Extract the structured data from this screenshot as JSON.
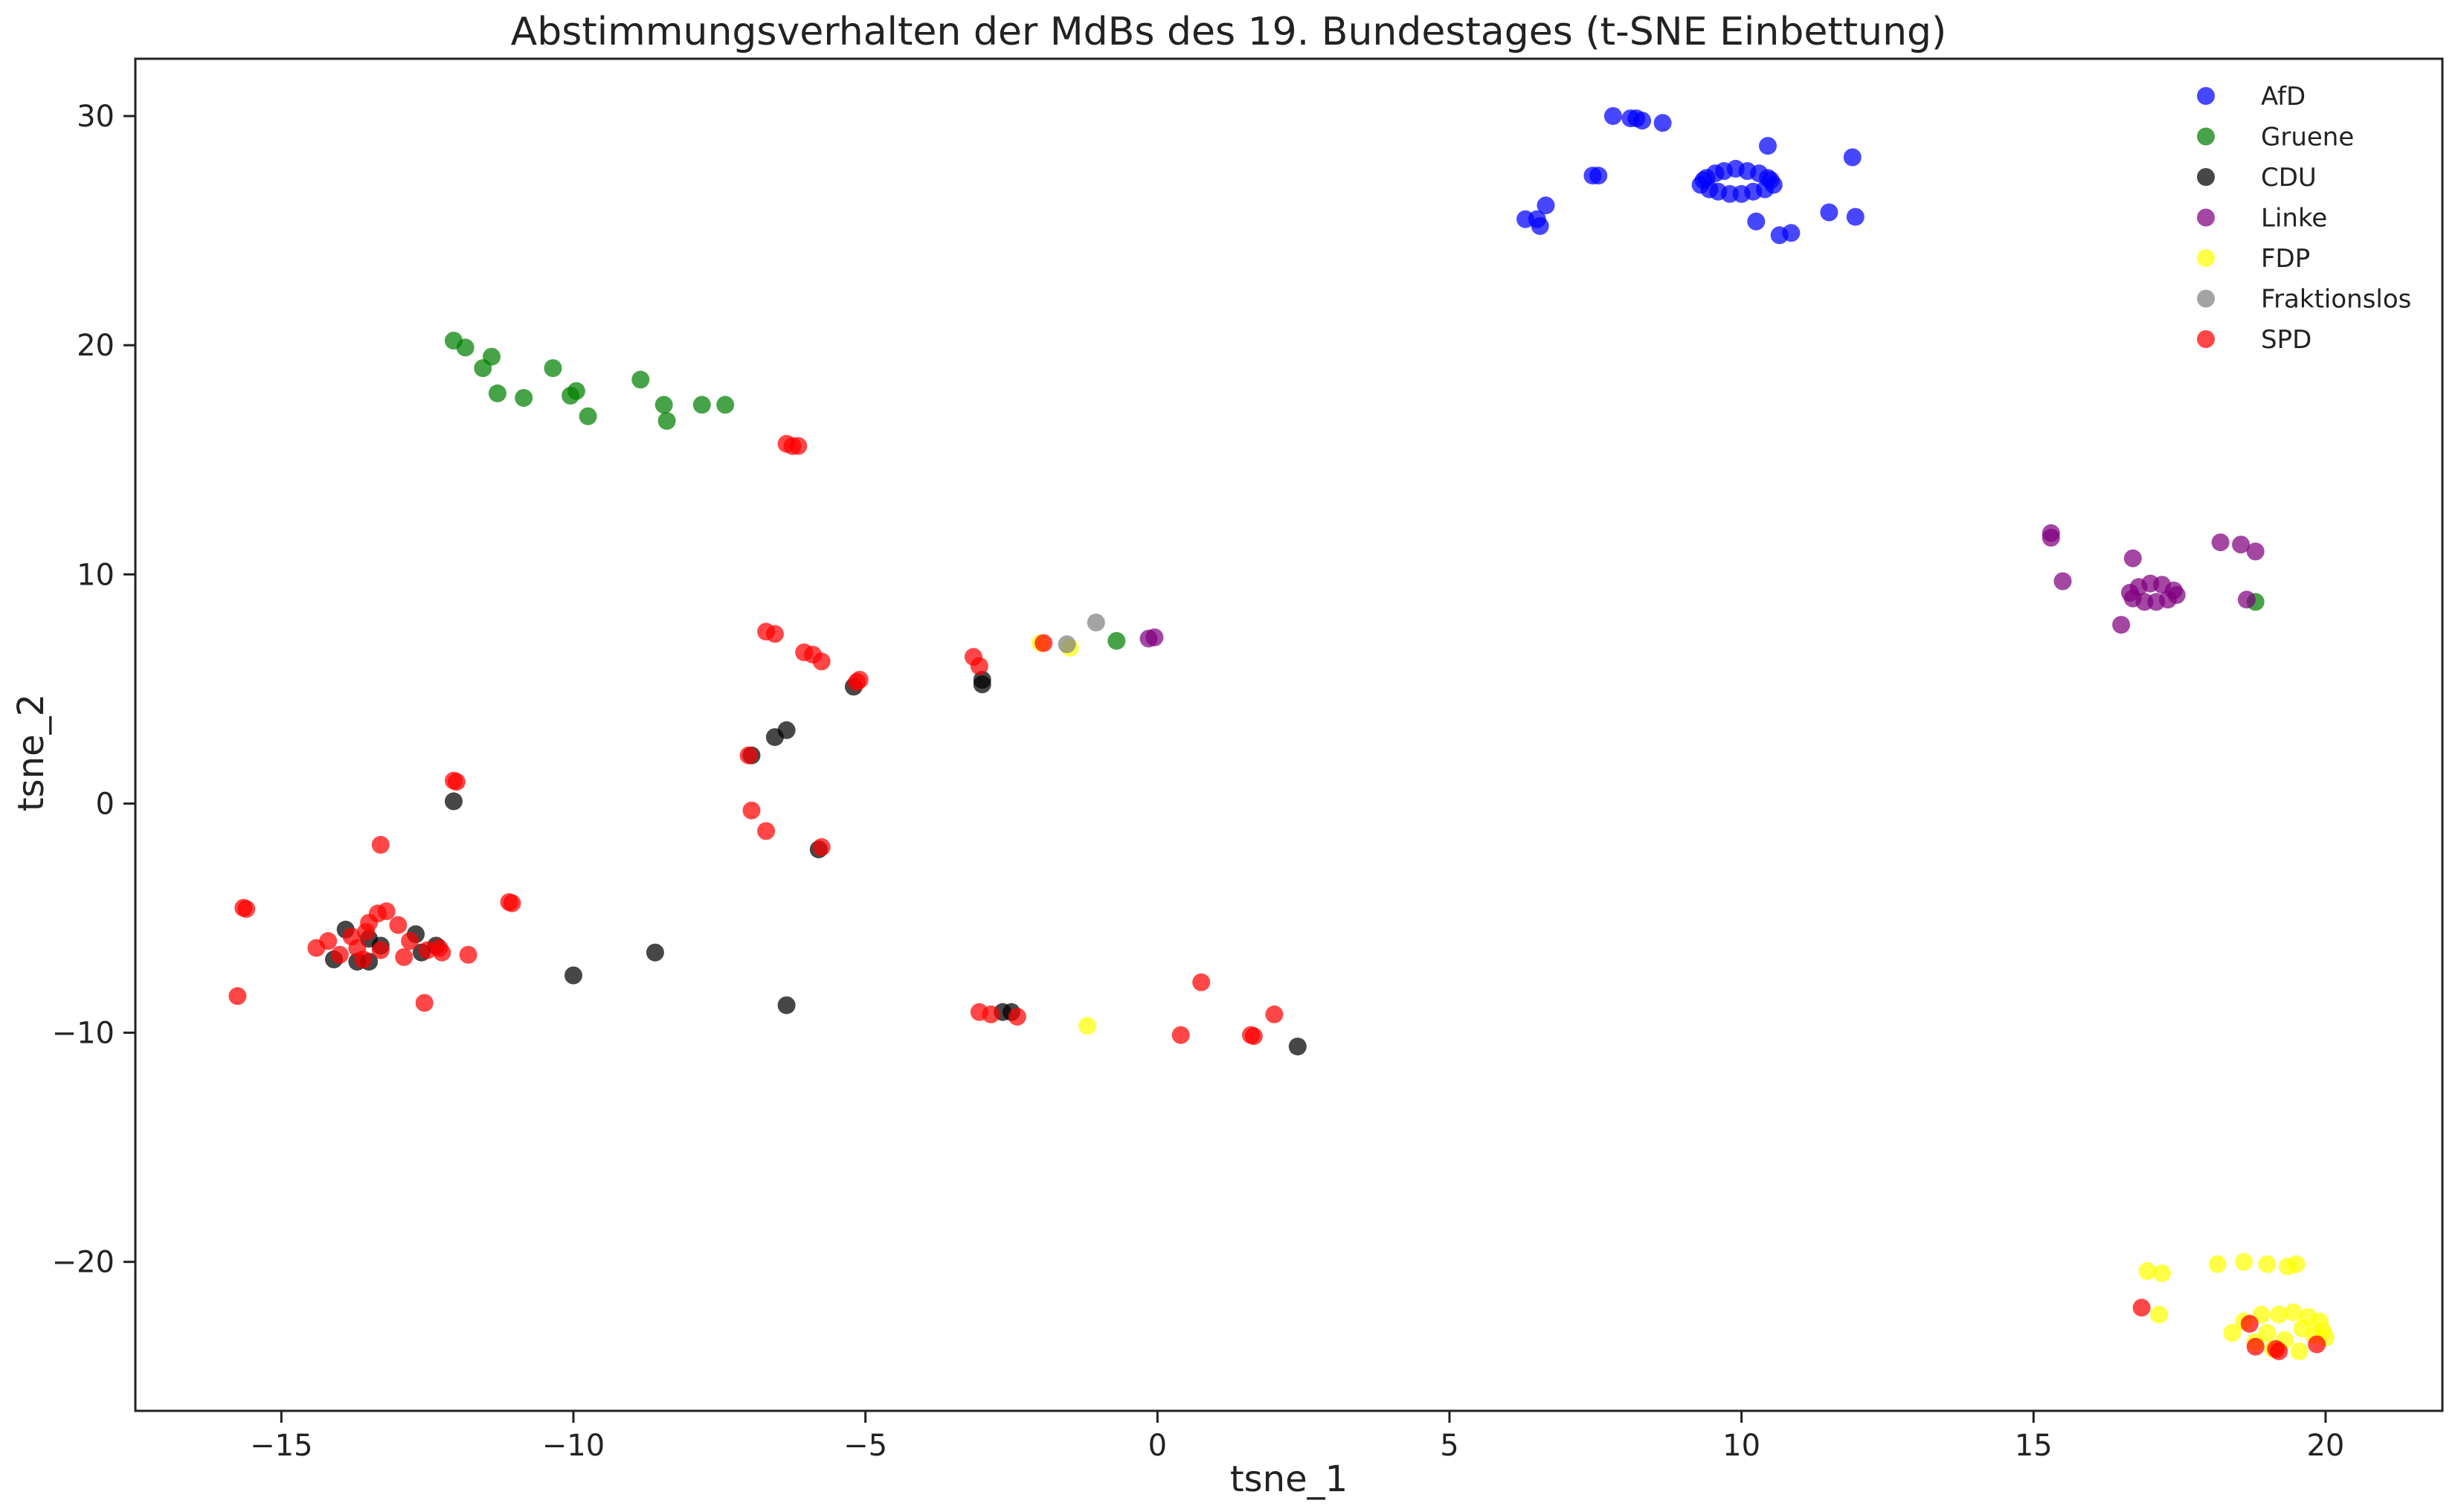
{
  "chart_data": {
    "type": "scatter",
    "title": "Abstimmungsverhalten der MdBs des 19. Bundestages (t-SNE Einbettung)",
    "xlabel": "tsne_1",
    "ylabel": "tsne_2",
    "xlim": [
      -17.5,
      22
    ],
    "ylim": [
      -26.5,
      32.5
    ],
    "xticks": [
      -15,
      -10,
      -5,
      0,
      5,
      10,
      15,
      20
    ],
    "yticks": [
      -20,
      -10,
      0,
      10,
      20,
      30
    ],
    "xtick_labels": [
      "−15",
      "−10",
      "−5",
      "0",
      "5",
      "10",
      "15",
      "20"
    ],
    "ytick_labels": [
      "−20",
      "−10",
      "0",
      "10",
      "20",
      "30"
    ],
    "grid": false,
    "legend_position": "top-right",
    "series": [
      {
        "name": "AfD",
        "color": "#0000ff",
        "points": [
          [
            7.8,
            30.0
          ],
          [
            8.1,
            29.9
          ],
          [
            8.2,
            29.9
          ],
          [
            8.3,
            29.8
          ],
          [
            8.65,
            29.7
          ],
          [
            7.45,
            27.4
          ],
          [
            7.55,
            27.4
          ],
          [
            6.3,
            25.5
          ],
          [
            6.5,
            25.5
          ],
          [
            6.55,
            25.2
          ],
          [
            6.65,
            26.1
          ],
          [
            10.45,
            28.7
          ],
          [
            11.9,
            28.2
          ],
          [
            11.5,
            25.8
          ],
          [
            11.95,
            25.6
          ],
          [
            10.25,
            25.4
          ],
          [
            10.65,
            24.8
          ],
          [
            10.85,
            24.9
          ],
          [
            9.3,
            27.0
          ],
          [
            9.4,
            27.3
          ],
          [
            9.45,
            26.8
          ],
          [
            9.55,
            27.5
          ],
          [
            9.6,
            26.7
          ],
          [
            9.7,
            27.6
          ],
          [
            9.8,
            26.6
          ],
          [
            9.9,
            27.7
          ],
          [
            10.0,
            26.6
          ],
          [
            10.1,
            27.6
          ],
          [
            10.2,
            26.7
          ],
          [
            10.3,
            27.5
          ],
          [
            10.4,
            26.8
          ],
          [
            10.5,
            27.2
          ],
          [
            10.55,
            27.0
          ],
          [
            9.35,
            27.2
          ],
          [
            10.45,
            27.3
          ]
        ]
      },
      {
        "name": "Gruene",
        "color": "#008000",
        "points": [
          [
            -12.05,
            20.2
          ],
          [
            -11.85,
            19.9
          ],
          [
            -11.4,
            19.5
          ],
          [
            -11.55,
            19.0
          ],
          [
            -11.3,
            17.9
          ],
          [
            -10.85,
            17.7
          ],
          [
            -10.35,
            19.0
          ],
          [
            -10.05,
            17.8
          ],
          [
            -9.95,
            18.0
          ],
          [
            -9.75,
            16.9
          ],
          [
            -8.85,
            18.5
          ],
          [
            -8.45,
            17.4
          ],
          [
            -8.4,
            16.7
          ],
          [
            -7.8,
            17.4
          ],
          [
            -7.4,
            17.4
          ],
          [
            -0.7,
            7.1
          ],
          [
            18.8,
            8.8
          ]
        ]
      },
      {
        "name": "CDU",
        "color": "#000000",
        "points": [
          [
            -12.05,
            0.1
          ],
          [
            -13.9,
            -5.5
          ],
          [
            -13.5,
            -5.9
          ],
          [
            -14.1,
            -6.8
          ],
          [
            -13.7,
            -6.9
          ],
          [
            -13.3,
            -6.2
          ],
          [
            -12.7,
            -5.7
          ],
          [
            -12.6,
            -6.5
          ],
          [
            -13.5,
            -6.9
          ],
          [
            -12.35,
            -6.2
          ],
          [
            -10.0,
            -7.5
          ],
          [
            -8.6,
            -6.5
          ],
          [
            -6.35,
            -8.8
          ],
          [
            -6.95,
            2.1
          ],
          [
            -6.55,
            2.9
          ],
          [
            -6.35,
            3.2
          ],
          [
            -5.8,
            -2.0
          ],
          [
            -5.2,
            5.1
          ],
          [
            -3.0,
            5.4
          ],
          [
            -3.0,
            5.2
          ],
          [
            -2.65,
            -9.1
          ],
          [
            -2.5,
            -9.1
          ],
          [
            2.4,
            -10.6
          ]
        ]
      },
      {
        "name": "Linke",
        "color": "#800080",
        "points": [
          [
            15.3,
            11.8
          ],
          [
            15.3,
            11.6
          ],
          [
            15.5,
            9.7
          ],
          [
            16.5,
            7.8
          ],
          [
            16.7,
            10.7
          ],
          [
            18.2,
            11.4
          ],
          [
            18.55,
            11.3
          ],
          [
            18.8,
            11.0
          ],
          [
            18.65,
            8.9
          ],
          [
            16.65,
            9.2
          ],
          [
            16.7,
            8.95
          ],
          [
            16.8,
            9.45
          ],
          [
            16.9,
            8.8
          ],
          [
            17.0,
            9.6
          ],
          [
            17.1,
            8.8
          ],
          [
            17.2,
            9.55
          ],
          [
            17.3,
            8.9
          ],
          [
            17.4,
            9.3
          ],
          [
            17.45,
            9.1
          ],
          [
            -0.15,
            7.2
          ],
          [
            -0.05,
            7.25
          ]
        ]
      },
      {
        "name": "FDP",
        "color": "#ffff00",
        "points": [
          [
            16.95,
            -20.4
          ],
          [
            17.2,
            -20.5
          ],
          [
            17.15,
            -22.3
          ],
          [
            18.15,
            -20.1
          ],
          [
            18.6,
            -20.0
          ],
          [
            19.0,
            -20.1
          ],
          [
            19.35,
            -20.2
          ],
          [
            19.5,
            -20.1
          ],
          [
            18.4,
            -23.1
          ],
          [
            18.6,
            -22.6
          ],
          [
            18.8,
            -23.5
          ],
          [
            18.9,
            -22.3
          ],
          [
            19.1,
            -23.8
          ],
          [
            19.2,
            -22.3
          ],
          [
            19.3,
            -23.4
          ],
          [
            19.45,
            -22.2
          ],
          [
            19.55,
            -23.9
          ],
          [
            19.7,
            -22.4
          ],
          [
            19.8,
            -23.2
          ],
          [
            19.9,
            -22.6
          ],
          [
            19.95,
            -23.0
          ],
          [
            20.0,
            -23.3
          ],
          [
            19.6,
            -22.9
          ],
          [
            19.0,
            -23.1
          ],
          [
            -2.0,
            7.0
          ],
          [
            -1.5,
            6.8
          ],
          [
            -1.2,
            -9.7
          ]
        ]
      },
      {
        "name": "Fraktionslos",
        "color": "#808080",
        "points": [
          [
            -1.55,
            6.95
          ],
          [
            -1.05,
            7.9
          ]
        ]
      },
      {
        "name": "SPD",
        "color": "#ff0000",
        "points": [
          [
            -6.35,
            15.7
          ],
          [
            -6.25,
            15.6
          ],
          [
            -6.15,
            15.6
          ],
          [
            -6.7,
            7.5
          ],
          [
            -6.55,
            7.4
          ],
          [
            -6.05,
            6.6
          ],
          [
            -5.9,
            6.5
          ],
          [
            -5.75,
            6.2
          ],
          [
            -5.15,
            5.3
          ],
          [
            -5.1,
            5.4
          ],
          [
            -3.15,
            6.4
          ],
          [
            -3.05,
            6.0
          ],
          [
            -1.95,
            7.0
          ],
          [
            -7.0,
            2.1
          ],
          [
            -6.95,
            -0.3
          ],
          [
            -6.7,
            -1.2
          ],
          [
            -5.75,
            -1.9
          ],
          [
            -12.05,
            1.0
          ],
          [
            -12.0,
            0.95
          ],
          [
            -13.3,
            -1.8
          ],
          [
            -15.6,
            -4.6
          ],
          [
            -15.65,
            -4.55
          ],
          [
            -15.75,
            -8.4
          ],
          [
            -14.4,
            -6.3
          ],
          [
            -14.2,
            -6.0
          ],
          [
            -14.0,
            -6.6
          ],
          [
            -13.8,
            -5.8
          ],
          [
            -13.6,
            -6.8
          ],
          [
            -13.5,
            -5.2
          ],
          [
            -13.35,
            -4.8
          ],
          [
            -13.3,
            -6.4
          ],
          [
            -13.2,
            -4.7
          ],
          [
            -13.0,
            -5.3
          ],
          [
            -12.9,
            -6.7
          ],
          [
            -12.8,
            -6.0
          ],
          [
            -12.5,
            -6.4
          ],
          [
            -12.3,
            -6.3
          ],
          [
            -12.25,
            -6.5
          ],
          [
            -13.55,
            -5.6
          ],
          [
            -13.7,
            -6.3
          ],
          [
            -12.55,
            -8.7
          ],
          [
            -11.8,
            -6.6
          ],
          [
            -11.1,
            -4.3
          ],
          [
            -11.05,
            -4.35
          ],
          [
            -3.05,
            -9.1
          ],
          [
            -2.85,
            -9.2
          ],
          [
            -2.4,
            -9.3
          ],
          [
            0.75,
            -7.8
          ],
          [
            0.4,
            -10.1
          ],
          [
            1.6,
            -10.1
          ],
          [
            1.65,
            -10.15
          ],
          [
            2.0,
            -9.2
          ],
          [
            16.85,
            -22.0
          ],
          [
            18.7,
            -22.7
          ],
          [
            18.8,
            -23.7
          ],
          [
            19.15,
            -23.8
          ],
          [
            19.2,
            -23.9
          ],
          [
            19.85,
            -23.6
          ]
        ]
      }
    ]
  }
}
